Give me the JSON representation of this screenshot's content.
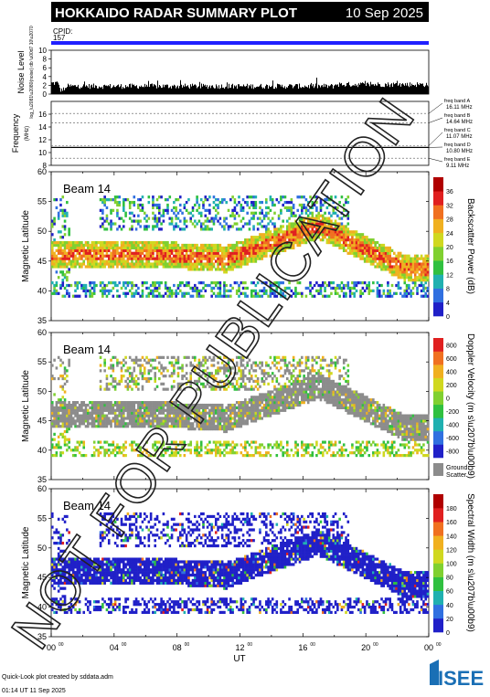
{
  "header": {
    "title": "HOKKAIDO RADAR SUMMARY PLOT",
    "date": "10 Sep 2025",
    "cpid_label": "CPID:",
    "cpid_value": "157",
    "bg_color": "#000000",
    "fg_color": "#ffffff",
    "cpid_bar_color": "#2020ff"
  },
  "footer": {
    "line1": "Quick-Look plot created by sddata.adm",
    "line2": "01:14 UT 11 Sep 2025",
    "watermark": "NOT FOR PUBLICATION",
    "logo_text": "ISEE"
  },
  "chart_data": [
    {
      "type": "bar",
      "name_key": "noise",
      "ylabel": "Noise Level",
      "ylabel_sub": "log_\\u2081\\u2080(noise) db \\u00d7 10\\u2070",
      "yticks": [
        "0",
        "2",
        "4",
        "6",
        "8",
        "10"
      ],
      "ylim": [
        0,
        10
      ],
      "typical_values": {
        "start": 2.5,
        "dip_at_0040": 1.0,
        "main": 1.8,
        "late": 2.2
      }
    },
    {
      "type": "line",
      "name_key": "frequency",
      "ylabel": "Frequency",
      "ylabel_unit": "(MHz)",
      "yticks": [
        "8",
        "10",
        "12",
        "14",
        "16"
      ],
      "ylim": [
        8,
        18
      ],
      "freq_bands": [
        {
          "label": "freq band A",
          "value": "16.11 MHz",
          "mhz": 16.11
        },
        {
          "label": "freq band B",
          "value": "14.64 MHz",
          "mhz": 14.64
        },
        {
          "label": "freq band C",
          "value": "11.07 MHz",
          "mhz": 11.07
        },
        {
          "label": "freq band D",
          "value": "10.80 MHz",
          "mhz": 10.8
        },
        {
          "label": "freq band E",
          "value": "9.11 MHz",
          "mhz": 9.11
        }
      ]
    },
    {
      "type": "heatmap",
      "name_key": "power",
      "beam_label": "Beam 14",
      "ylabel": "Magnetic Latitude",
      "yticks": [
        "35",
        "40",
        "45",
        "50",
        "55",
        "60"
      ],
      "ylim": [
        35,
        60
      ],
      "colorbar_label": "Backscatter Power (dB)",
      "colorbar_ticks": [
        "0",
        "4",
        "8",
        "12",
        "16",
        "20",
        "24",
        "28",
        "32",
        "36"
      ],
      "colors": [
        "#2020c8",
        "#3070e0",
        "#20b0b0",
        "#30c040",
        "#80d030",
        "#d0d820",
        "#f0b020",
        "#f07020",
        "#e02020",
        "#b00000"
      ]
    },
    {
      "type": "heatmap",
      "name_key": "velocity",
      "beam_label": "Beam 14",
      "ylabel": "Magnetic Latitude",
      "yticks": [
        "35",
        "40",
        "45",
        "50",
        "55",
        "60"
      ],
      "ylim": [
        35,
        60
      ],
      "colorbar_label": "Doppler Velocity (m s\\u207b\\u00b9)",
      "colorbar_ticks": [
        "800",
        "600",
        "400",
        "200",
        "0",
        "-200",
        "-400",
        "-600",
        "-800"
      ],
      "colors": [
        "#2020c8",
        "#3070e0",
        "#20b0b0",
        "#30c040",
        "#80d030",
        "#d0d820",
        "#f0b020",
        "#f07020",
        "#e02020"
      ],
      "ground_scatter_label": "Ground Scatter",
      "ground_scatter_color": "#8c8c8c"
    },
    {
      "type": "heatmap",
      "name_key": "width",
      "beam_label": "Beam 14",
      "ylabel": "Magnetic Latitude",
      "yticks": [
        "35",
        "40",
        "45",
        "50",
        "55",
        "60"
      ],
      "ylim": [
        35,
        60
      ],
      "colorbar_label": "Spectral Width (m s\\u207b\\u00b9)",
      "colorbar_ticks": [
        "0",
        "20",
        "40",
        "60",
        "80",
        "100",
        "120",
        "140",
        "160",
        "180"
      ],
      "colors": [
        "#2020c8",
        "#3070e0",
        "#20b0b0",
        "#30c040",
        "#80d030",
        "#d0d820",
        "#f0b020",
        "#f07020",
        "#e02020",
        "#b00000"
      ]
    }
  ],
  "x_axis": {
    "xlabel": "UT",
    "ticks": [
      {
        "hour": "00",
        "sup": "00"
      },
      {
        "hour": "04",
        "sup": "00"
      },
      {
        "hour": "08",
        "sup": "00"
      },
      {
        "hour": "12",
        "sup": "00"
      },
      {
        "hour": "16",
        "sup": "00"
      },
      {
        "hour": "20",
        "sup": "00"
      },
      {
        "hour": "00",
        "sup": "00"
      }
    ],
    "xlim_hours": [
      0,
      24
    ]
  }
}
